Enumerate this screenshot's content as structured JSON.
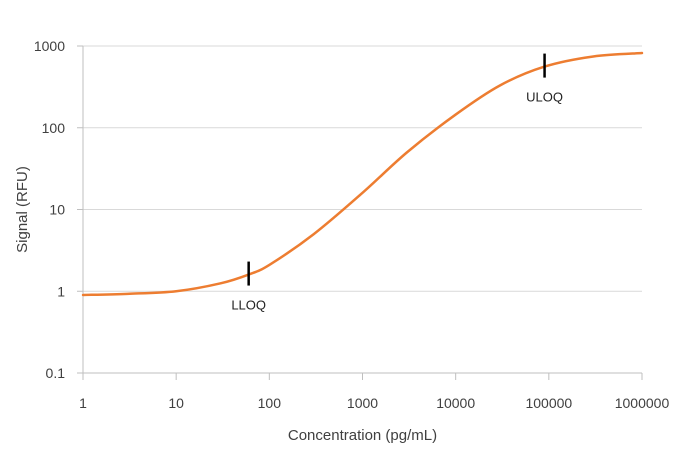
{
  "chart_data": {
    "type": "line",
    "title": "",
    "xlabel": "Concentration (pg/mL)",
    "ylabel": "Signal (RFU)",
    "x_scale": "log",
    "y_scale": "log",
    "xlim": [
      1,
      1000000
    ],
    "ylim": [
      0.1,
      1000
    ],
    "x_ticks": [
      "1",
      "10",
      "100",
      "1000",
      "10000",
      "100000",
      "1000000"
    ],
    "y_ticks": [
      "0.1",
      "1",
      "10",
      "100",
      "1000"
    ],
    "grid": "horizontal",
    "line_color": "#ED7D31",
    "series": [
      {
        "x": [
          1,
          3,
          10,
          30,
          60,
          100,
          300,
          1000,
          3000,
          10000,
          30000,
          90000,
          300000,
          1000000
        ],
        "values": [
          0.9,
          0.93,
          1.0,
          1.25,
          1.6,
          2.1,
          5.0,
          16,
          50,
          145,
          330,
          560,
          745,
          820
        ]
      }
    ],
    "annotations": [
      {
        "text": "LLOQ",
        "x": 60,
        "y": 1.6
      },
      {
        "text": "ULOQ",
        "x": 90000,
        "y": 560
      }
    ]
  }
}
